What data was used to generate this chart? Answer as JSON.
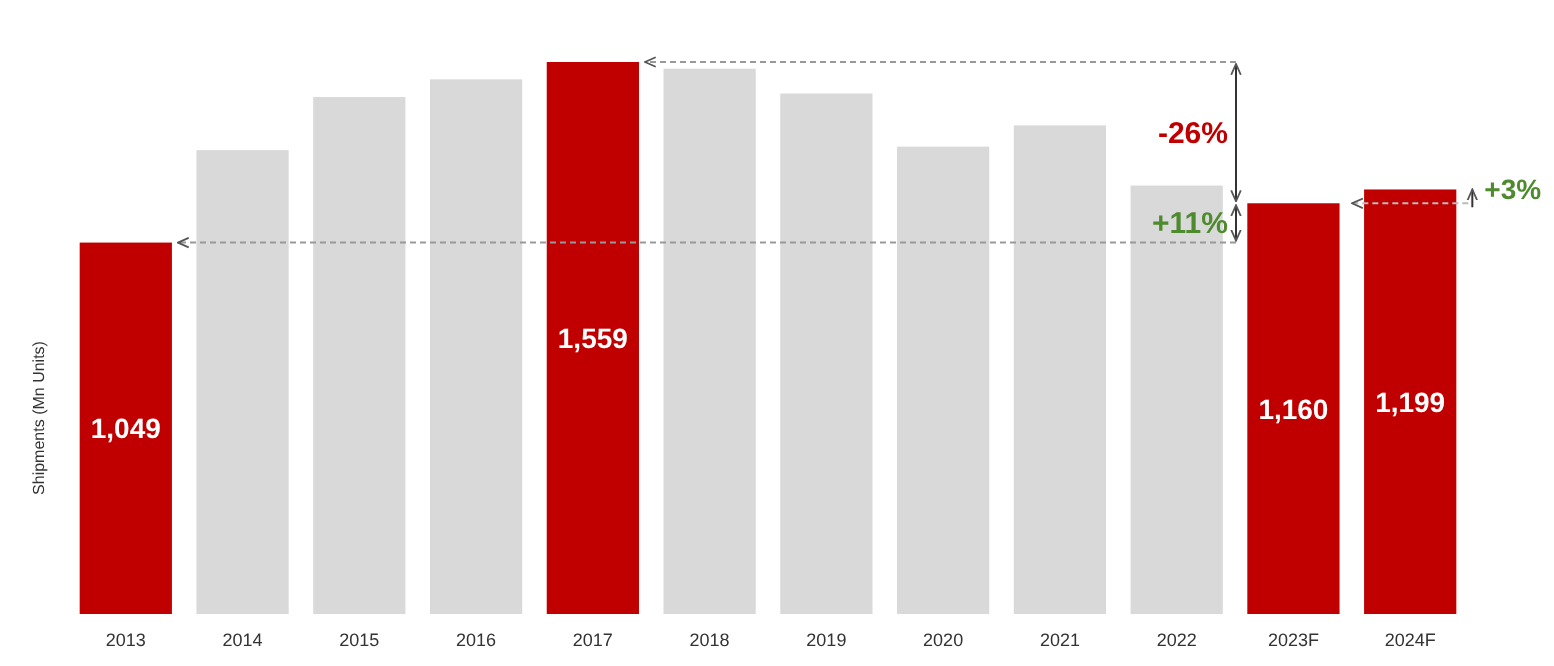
{
  "chart_data": {
    "type": "bar",
    "ylabel": "Shipments (Mn Units)",
    "categories": [
      "2013",
      "2014",
      "2015",
      "2016",
      "2017",
      "2018",
      "2019",
      "2020",
      "2021",
      "2022",
      "2023F",
      "2024F"
    ],
    "values": [
      1049,
      1310,
      1460,
      1510,
      1559,
      1540,
      1470,
      1320,
      1380,
      1210,
      1160,
      1199
    ],
    "colors": [
      "#c00000",
      "#d9d9d9",
      "#d9d9d9",
      "#d9d9d9",
      "#c00000",
      "#d9d9d9",
      "#d9d9d9",
      "#d9d9d9",
      "#d9d9d9",
      "#d9d9d9",
      "#c00000",
      "#c00000"
    ],
    "value_labels": [
      "1,049",
      null,
      null,
      null,
      "1,559",
      null,
      null,
      null,
      null,
      null,
      "1,160",
      "1,199"
    ],
    "annotations": [
      "-26%",
      "+11%",
      "+3%"
    ]
  }
}
